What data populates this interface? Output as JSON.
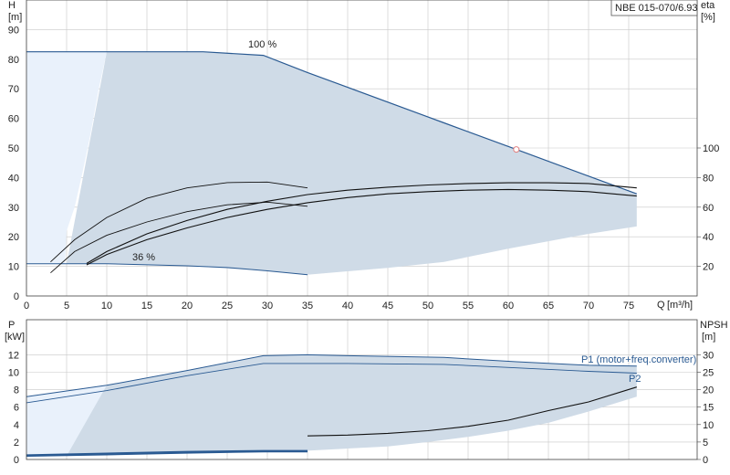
{
  "colors": {
    "envelope_fill": "#cfdbe7",
    "light_fill": "#e9f1fb",
    "blue_line": "#2a5a92",
    "black_line": "#111111",
    "gray_line": "#777777",
    "duty_point": "#e08080"
  },
  "legend": {
    "model": "NBE 015-070/6.93"
  },
  "chart_data": [
    {
      "type": "line",
      "title": "",
      "ylabel": "H",
      "yunit": "[m]",
      "y2label": "eta",
      "y2unit": "[%]",
      "xlabel": "Q",
      "xunit": "[m³/h]",
      "xlim": [
        0,
        78
      ],
      "ylim": [
        0,
        90
      ],
      "y2lim": [
        0,
        180
      ],
      "xticks": [
        "0",
        "5",
        "10",
        "15",
        "20",
        "25",
        "30",
        "35",
        "40",
        "45",
        "50",
        "55",
        "60",
        "65",
        "70",
        "75"
      ],
      "yticks": [
        "0",
        "10",
        "20",
        "30",
        "40",
        "50",
        "60",
        "70",
        "80",
        "90"
      ],
      "y2ticks": [
        "20",
        "40",
        "60",
        "80",
        "100"
      ],
      "grid": true,
      "labels": [
        "100 %",
        "36 %"
      ],
      "series": [
        {
          "kind": "H_max",
          "x": [
            0,
            22,
            29.5,
            35,
            40,
            52,
            61,
            70,
            76
          ],
          "y": [
            82.5,
            82.5,
            81.3,
            75.5,
            70.5,
            58.5,
            49.5,
            40.5,
            34.5
          ]
        },
        {
          "kind": "H_min",
          "x": [
            0,
            10,
            20,
            25,
            30,
            35
          ],
          "y": [
            10.9,
            10.9,
            10.2,
            9.6,
            8.5,
            7.2
          ]
        },
        {
          "kind": "H_mid",
          "x": [
            3,
            6,
            10,
            15,
            20,
            25,
            30,
            35
          ],
          "y": [
            7.8,
            15,
            20.5,
            25,
            28.5,
            30.8,
            31.7,
            30.3
          ]
        },
        {
          "kind": "H_mid",
          "x": [
            3,
            6,
            10,
            15,
            20,
            25,
            30,
            35
          ],
          "y": [
            11.5,
            19,
            26.5,
            33,
            36.5,
            38.3,
            38.5,
            36.5
          ]
        },
        {
          "kind": "eta",
          "x": [
            7.5,
            10,
            15,
            20,
            25,
            30,
            35,
            40,
            45,
            50,
            55,
            60,
            65,
            70,
            76
          ],
          "y": [
            21,
            28,
            38,
            46,
            53,
            58.5,
            63,
            66.5,
            69,
            70.5,
            71.5,
            72,
            71.5,
            70.5,
            67.5
          ]
        },
        {
          "kind": "eta",
          "x": [
            7.5,
            10,
            15,
            20,
            25,
            30,
            35,
            40,
            45,
            50,
            55,
            60,
            65,
            70,
            76
          ],
          "y": [
            22,
            30,
            42,
            51,
            58.5,
            64,
            68.5,
            71.5,
            73.5,
            75,
            76,
            76.5,
            76.5,
            76,
            73
          ]
        },
        {
          "kind": "envelope_upper",
          "x": [
            10,
            22,
            29.5,
            35,
            40,
            52,
            61,
            70,
            76
          ],
          "y": [
            82.5,
            82.5,
            81.3,
            75.5,
            70.5,
            58.5,
            49.5,
            40.5,
            34.5
          ]
        },
        {
          "kind": "envelope_lower",
          "x": [
            76,
            70,
            60,
            52,
            45,
            35,
            30,
            20,
            10,
            5
          ],
          "y": [
            23.5,
            21,
            16,
            11.5,
            9.5,
            7.2,
            8.5,
            10.2,
            10.9,
            10.9
          ]
        },
        {
          "kind": "light_region",
          "x": [
            0,
            10,
            9,
            8,
            7,
            6,
            5,
            4.8,
            0
          ],
          "y": [
            82.5,
            82.5,
            70,
            55,
            42,
            30,
            22,
            10.9,
            10.9
          ]
        }
      ],
      "duty_point": {
        "x": 61,
        "y": 49.5
      }
    },
    {
      "type": "line",
      "title": "",
      "ylabel": "P",
      "yunit": "[kW]",
      "y2label": "NPSH",
      "y2unit": "[m]",
      "xlim": [
        0,
        78
      ],
      "ylim": [
        0,
        14
      ],
      "y2lim": [
        0,
        35
      ],
      "yticks": [
        "0",
        "2",
        "4",
        "6",
        "8",
        "10",
        "12"
      ],
      "y2ticks": [
        "0",
        "5",
        "10",
        "15",
        "20",
        "25",
        "30"
      ],
      "grid": true,
      "labels": [
        "P1 (motor+freq.converter)",
        "P2"
      ],
      "series": [
        {
          "name": "P1 (motor+freq.converter)",
          "x": [
            0,
            10,
            20,
            29.5,
            35,
            40,
            52,
            61,
            70,
            76
          ],
          "y": [
            7.2,
            8.5,
            10.2,
            11.9,
            12.0,
            11.9,
            11.7,
            11.2,
            10.8,
            10.7
          ]
        },
        {
          "name": "P2",
          "x": [
            0,
            10,
            20,
            29.5,
            35,
            40,
            52,
            61,
            70,
            76
          ],
          "y": [
            6.5,
            7.9,
            9.6,
            11.0,
            11.0,
            11.0,
            10.9,
            10.5,
            10.1,
            9.9
          ]
        },
        {
          "kind": "P_min",
          "x": [
            0,
            10,
            20,
            29.5,
            35
          ],
          "y": [
            0.5,
            0.7,
            0.9,
            1.0,
            1.0
          ]
        },
        {
          "kind": "P_min",
          "x": [
            0,
            10,
            20,
            29.5,
            35
          ],
          "y": [
            0.4,
            0.55,
            0.75,
            0.9,
            0.9
          ]
        },
        {
          "kind": "NPSH",
          "x": [
            35,
            40,
            45,
            50,
            55,
            60,
            65,
            70,
            76
          ],
          "y": [
            2.7,
            2.8,
            3.0,
            3.3,
            3.8,
            4.5,
            5.6,
            6.6,
            8.3
          ]
        },
        {
          "kind": "envelope_upper",
          "x": [
            10,
            20,
            29.5,
            35,
            40,
            52,
            61,
            70,
            76
          ],
          "y": [
            8.5,
            10.2,
            11.9,
            12.0,
            11.9,
            11.7,
            11.2,
            10.8,
            10.7
          ]
        },
        {
          "kind": "envelope_lower",
          "x": [
            76,
            70,
            65,
            60,
            55,
            50,
            45,
            35,
            29.5,
            20,
            10,
            5
          ],
          "y": [
            7.2,
            5.5,
            4.2,
            3.3,
            2.6,
            2.0,
            1.5,
            1.0,
            1.0,
            0.8,
            0.6,
            0.4
          ]
        },
        {
          "kind": "light_region",
          "x": [
            0,
            10,
            9,
            8,
            7,
            6,
            5,
            0
          ],
          "y": [
            7.2,
            8.5,
            6.5,
            4.5,
            2.8,
            1.5,
            0.5,
            0.2
          ]
        }
      ]
    }
  ]
}
